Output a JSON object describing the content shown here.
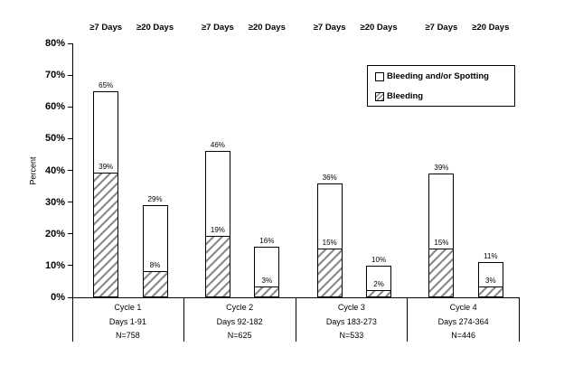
{
  "chart_data": {
    "type": "bar",
    "stacked": true,
    "title": "",
    "xlabel": "",
    "ylabel": "Percent",
    "ylim": [
      0,
      80
    ],
    "ytick_step": 10,
    "ytick_labels": [
      "0%",
      "10%",
      "20%",
      "30%",
      "40%",
      "50%",
      "60%",
      "70%",
      "80%"
    ],
    "grid": false,
    "legend_position": "top-right",
    "legend": [
      {
        "label": "Bleeding and/or Spotting",
        "style": "open"
      },
      {
        "label": "Bleeding",
        "style": "hatched"
      }
    ],
    "series": [
      {
        "name": "Bleeding and/or Spotting",
        "style": "open",
        "values": [
          65,
          29,
          46,
          16,
          36,
          10,
          39,
          11
        ]
      },
      {
        "name": "Bleeding",
        "style": "hatched",
        "values": [
          39,
          8,
          19,
          3,
          15,
          2,
          15,
          3
        ]
      }
    ],
    "groups": [
      {
        "title": "Cycle 1",
        "days_label": "Days 1-91",
        "n_label": "N=758",
        "bars": [
          {
            "header": "≥7 Days",
            "total": 65,
            "bleeding": 39,
            "total_label": "65%",
            "bleeding_label": "39%"
          },
          {
            "header": "≥20 Days",
            "total": 29,
            "bleeding": 8,
            "total_label": "29%",
            "bleeding_label": "8%"
          }
        ]
      },
      {
        "title": "Cycle 2",
        "days_label": "Days 92-182",
        "n_label": "N=625",
        "bars": [
          {
            "header": "≥7 Days",
            "total": 46,
            "bleeding": 19,
            "total_label": "46%",
            "bleeding_label": "19%"
          },
          {
            "header": "≥20 Days",
            "total": 16,
            "bleeding": 3,
            "total_label": "16%",
            "bleeding_label": "3%"
          }
        ]
      },
      {
        "title": "Cycle 3",
        "days_label": "Days 183-273",
        "n_label": "N=533",
        "bars": [
          {
            "header": "≥7 Days",
            "total": 36,
            "bleeding": 15,
            "total_label": "36%",
            "bleeding_label": "15%"
          },
          {
            "header": "≥20 Days",
            "total": 10,
            "bleeding": 2,
            "total_label": "10%",
            "bleeding_label": "2%"
          }
        ]
      },
      {
        "title": "Cycle 4",
        "days_label": "Days 274-364",
        "n_label": "N=446",
        "bars": [
          {
            "header": "≥7 Days",
            "total": 39,
            "bleeding": 15,
            "total_label": "39%",
            "bleeding_label": "15%"
          },
          {
            "header": "≥20 Days",
            "total": 11,
            "bleeding": 3,
            "total_label": "11%",
            "bleeding_label": "3%"
          }
        ]
      }
    ]
  }
}
